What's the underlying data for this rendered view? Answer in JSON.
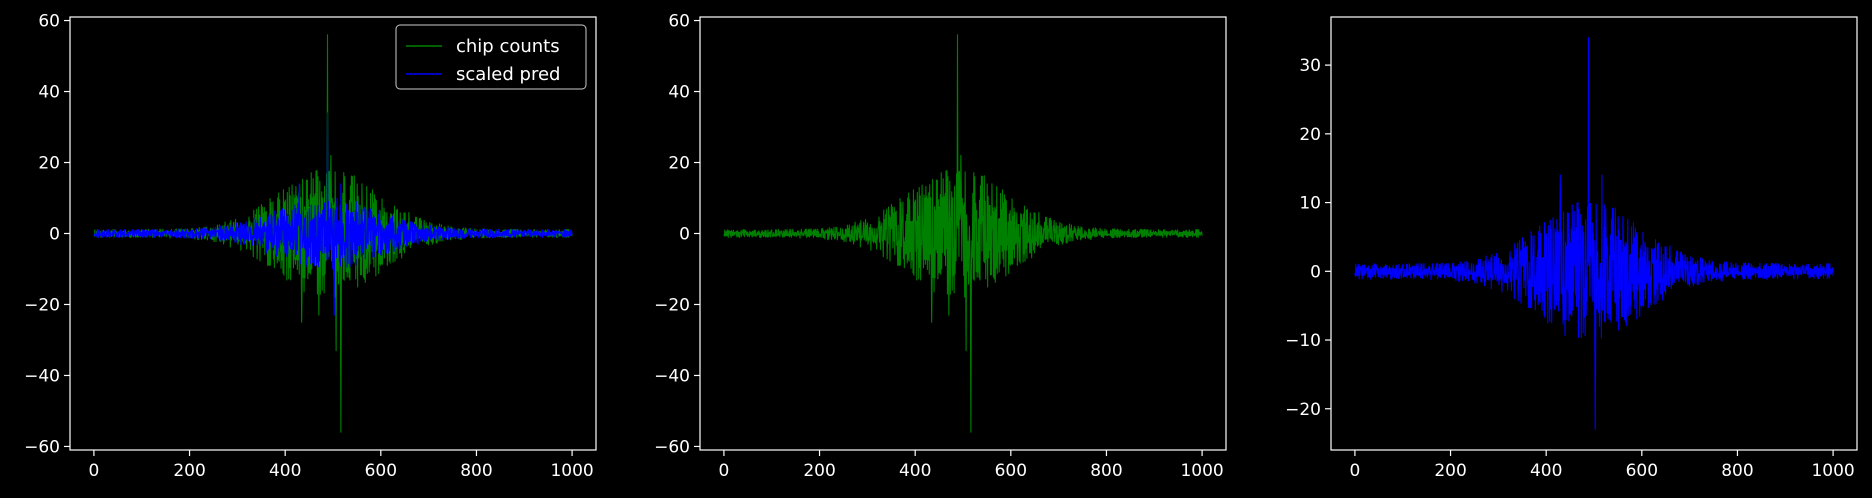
{
  "figure": {
    "background": "#000000",
    "foreground": "#ffffff"
  },
  "chart_data": [
    {
      "type": "line",
      "title": "",
      "xlabel": "",
      "ylabel": "",
      "xlim": [
        -50,
        1050
      ],
      "ylim": [
        -61,
        61
      ],
      "xticks": [
        0,
        200,
        400,
        600,
        800,
        1000
      ],
      "yticks": [
        -60,
        -40,
        -20,
        0,
        20,
        40,
        60
      ],
      "grid": false,
      "legend": {
        "placement": "top-right",
        "entries": [
          "chip counts",
          "scaled pred"
        ]
      },
      "series": [
        {
          "name": "chip counts",
          "color": "#008000",
          "x_range": [
            0,
            1000
          ],
          "n_points": 1000,
          "envelope_max": 16,
          "center": 490,
          "spikes": [
            [
              488,
              56
            ],
            [
              517,
              -56
            ],
            [
              434,
              -25
            ],
            [
              507,
              -33
            ],
            [
              495,
              22
            ],
            [
              470,
              -23
            ]
          ]
        },
        {
          "name": "scaled pred",
          "color": "#0000ff",
          "x_range": [
            0,
            1000
          ],
          "n_points": 1000,
          "envelope_max": 9,
          "center": 490,
          "spikes": [
            [
              488,
              34
            ],
            [
              503,
              -23
            ],
            [
              429,
              14
            ],
            [
              517,
              14
            ]
          ]
        }
      ]
    },
    {
      "type": "line",
      "title": "",
      "xlabel": "",
      "ylabel": "",
      "xlim": [
        -50,
        1050
      ],
      "ylim": [
        -61,
        61
      ],
      "xticks": [
        0,
        200,
        400,
        600,
        800,
        1000
      ],
      "yticks": [
        -60,
        -40,
        -20,
        0,
        20,
        40,
        60
      ],
      "grid": false,
      "series": [
        {
          "color": "#008000",
          "x_range": [
            0,
            1000
          ],
          "n_points": 1000,
          "envelope_max": 16,
          "center": 490,
          "spikes": [
            [
              488,
              56
            ],
            [
              517,
              -56
            ],
            [
              434,
              -25
            ],
            [
              507,
              -33
            ],
            [
              495,
              22
            ],
            [
              470,
              -23
            ]
          ]
        }
      ]
    },
    {
      "type": "line",
      "title": "",
      "xlabel": "",
      "ylabel": "",
      "xlim": [
        -50,
        1050
      ],
      "ylim": [
        -26,
        37
      ],
      "xticks": [
        0,
        200,
        400,
        600,
        800,
        1000
      ],
      "yticks": [
        -20,
        -10,
        0,
        10,
        20,
        30
      ],
      "grid": false,
      "series": [
        {
          "color": "#0000ff",
          "x_range": [
            0,
            1000
          ],
          "n_points": 1000,
          "envelope_max": 9,
          "center": 490,
          "spikes": [
            [
              488,
              34
            ],
            [
              503,
              -23
            ],
            [
              429,
              14
            ],
            [
              517,
              14
            ]
          ]
        }
      ]
    }
  ]
}
